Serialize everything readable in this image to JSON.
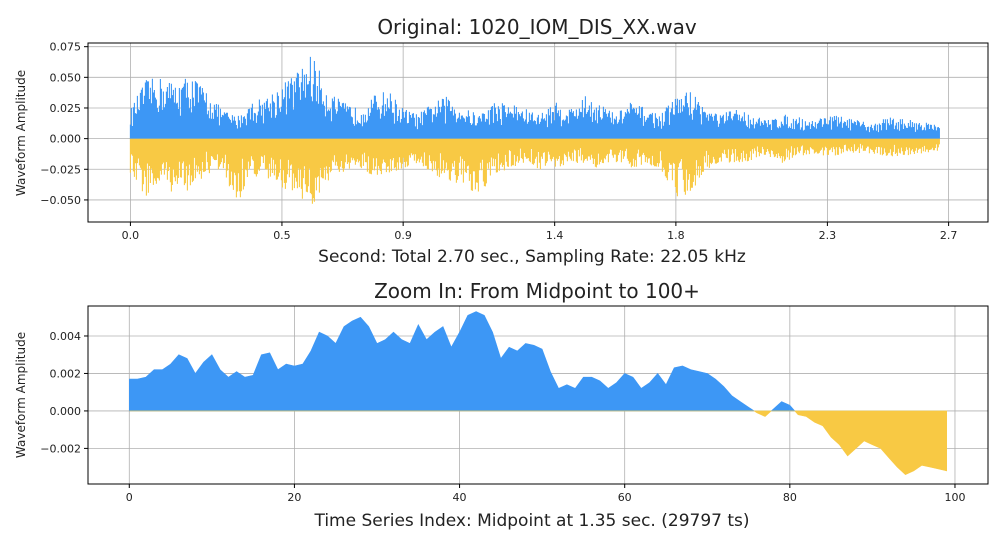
{
  "chart_data": [
    {
      "type": "area",
      "title": "Original: 1020_IOM_DIS_XX.wav",
      "xlabel": "Second: Total 2.70 sec., Sampling Rate: 22.05 kHz",
      "ylabel": "Waveform Amplitude",
      "xlim": [
        -0.14,
        2.83
      ],
      "ylim": [
        -0.068,
        0.078
      ],
      "xticks": [
        0.0,
        0.5,
        0.9,
        1.4,
        1.8,
        2.3,
        2.7
      ],
      "xtick_labels": [
        "0.0",
        "0.5",
        "0.9",
        "1.4",
        "1.8",
        "2.3",
        "2.7"
      ],
      "yticks": [
        -0.05,
        -0.025,
        0.0,
        0.025,
        0.05,
        0.075
      ],
      "ytick_labels": [
        "−0.050",
        "−0.025",
        "0.000",
        "0.025",
        "0.050",
        "0.075"
      ],
      "grid": true,
      "positive_color": "#3d97f5",
      "negative_color": "#f8c944",
      "envelope": {
        "x": [
          0.0,
          0.05,
          0.1,
          0.15,
          0.2,
          0.25,
          0.3,
          0.35,
          0.4,
          0.45,
          0.5,
          0.55,
          0.6,
          0.65,
          0.7,
          0.75,
          0.8,
          0.85,
          0.9,
          0.95,
          1.0,
          1.05,
          1.1,
          1.15,
          1.2,
          1.25,
          1.3,
          1.35,
          1.4,
          1.45,
          1.5,
          1.55,
          1.6,
          1.65,
          1.7,
          1.75,
          1.8,
          1.85,
          1.9,
          1.95,
          2.0,
          2.05,
          2.1,
          2.15,
          2.2,
          2.25,
          2.3,
          2.35,
          2.4,
          2.45,
          2.5,
          2.55,
          2.6,
          2.65,
          2.67
        ],
        "upper": [
          0.024,
          0.048,
          0.05,
          0.046,
          0.053,
          0.04,
          0.025,
          0.018,
          0.03,
          0.035,
          0.045,
          0.055,
          0.07,
          0.04,
          0.03,
          0.025,
          0.035,
          0.04,
          0.025,
          0.02,
          0.03,
          0.035,
          0.025,
          0.02,
          0.03,
          0.03,
          0.025,
          0.02,
          0.03,
          0.025,
          0.035,
          0.03,
          0.02,
          0.03,
          0.025,
          0.02,
          0.035,
          0.04,
          0.025,
          0.02,
          0.025,
          0.02,
          0.015,
          0.02,
          0.018,
          0.015,
          0.02,
          0.018,
          0.015,
          0.012,
          0.018,
          0.016,
          0.015,
          0.012,
          0.01
        ],
        "lower": [
          -0.03,
          -0.048,
          -0.04,
          -0.045,
          -0.042,
          -0.03,
          -0.025,
          -0.055,
          -0.03,
          -0.035,
          -0.04,
          -0.045,
          -0.058,
          -0.035,
          -0.03,
          -0.025,
          -0.03,
          -0.03,
          -0.025,
          -0.02,
          -0.03,
          -0.035,
          -0.04,
          -0.05,
          -0.03,
          -0.025,
          -0.02,
          -0.025,
          -0.025,
          -0.02,
          -0.02,
          -0.025,
          -0.02,
          -0.025,
          -0.02,
          -0.025,
          -0.048,
          -0.045,
          -0.025,
          -0.02,
          -0.02,
          -0.018,
          -0.015,
          -0.02,
          -0.015,
          -0.013,
          -0.015,
          -0.013,
          -0.012,
          -0.012,
          -0.015,
          -0.014,
          -0.013,
          -0.012,
          -0.01
        ]
      }
    },
    {
      "type": "area",
      "title": "Zoom In: From Midpoint to 100+",
      "xlabel": "Time Series Index: Midpoint at 1.35 sec. (29797 ts)",
      "ylabel": "Waveform Amplitude",
      "xlim": [
        -5,
        104
      ],
      "ylim": [
        -0.0039,
        0.0056
      ],
      "xticks": [
        0,
        20,
        40,
        60,
        80,
        100
      ],
      "xtick_labels": [
        "0",
        "20",
        "40",
        "60",
        "80",
        "100"
      ],
      "yticks": [
        -0.002,
        0.0,
        0.002,
        0.004
      ],
      "ytick_labels": [
        "−0.002",
        "0.000",
        "0.002",
        "0.004"
      ],
      "grid": true,
      "positive_color": "#3d97f5",
      "negative_color": "#f8c944",
      "x": [
        0,
        1,
        2,
        3,
        4,
        5,
        6,
        7,
        8,
        9,
        10,
        11,
        12,
        13,
        14,
        15,
        16,
        17,
        18,
        19,
        20,
        21,
        22,
        23,
        24,
        25,
        26,
        27,
        28,
        29,
        30,
        31,
        32,
        33,
        34,
        35,
        36,
        37,
        38,
        39,
        40,
        41,
        42,
        43,
        44,
        45,
        46,
        47,
        48,
        49,
        50,
        51,
        52,
        53,
        54,
        55,
        56,
        57,
        58,
        59,
        60,
        61,
        62,
        63,
        64,
        65,
        66,
        67,
        68,
        69,
        70,
        71,
        72,
        73,
        74,
        75,
        76,
        77,
        78,
        79,
        80,
        81,
        82,
        83,
        84,
        85,
        86,
        87,
        88,
        89,
        90,
        91,
        92,
        93,
        94,
        95,
        96,
        97,
        98,
        99
      ],
      "y": [
        0.0017,
        0.0017,
        0.0018,
        0.0022,
        0.0022,
        0.0025,
        0.003,
        0.0028,
        0.002,
        0.0026,
        0.003,
        0.0022,
        0.0018,
        0.0021,
        0.0018,
        0.0019,
        0.003,
        0.0031,
        0.0022,
        0.0025,
        0.0024,
        0.0025,
        0.0032,
        0.0042,
        0.004,
        0.0036,
        0.0045,
        0.0048,
        0.005,
        0.0045,
        0.0036,
        0.0038,
        0.0042,
        0.0038,
        0.0036,
        0.0046,
        0.0038,
        0.0042,
        0.0045,
        0.0034,
        0.0042,
        0.0051,
        0.0053,
        0.0051,
        0.0042,
        0.0028,
        0.0034,
        0.0032,
        0.0036,
        0.0035,
        0.0033,
        0.0021,
        0.0012,
        0.0014,
        0.0012,
        0.0018,
        0.0018,
        0.0016,
        0.0012,
        0.0015,
        0.002,
        0.0018,
        0.0012,
        0.0015,
        0.002,
        0.0014,
        0.0023,
        0.0024,
        0.0022,
        0.0021,
        0.002,
        0.0017,
        0.0013,
        0.0008,
        0.0005,
        0.0002,
        -0.0001,
        -0.0003,
        0.0001,
        0.0005,
        0.0003,
        -0.0002,
        -0.0003,
        -0.0006,
        -0.0008,
        -0.0014,
        -0.0018,
        -0.0024,
        -0.002,
        -0.0016,
        -0.0018,
        -0.002,
        -0.0025,
        -0.003,
        -0.0034,
        -0.0032,
        -0.0029,
        -0.003,
        -0.0031,
        -0.0032
      ]
    }
  ]
}
